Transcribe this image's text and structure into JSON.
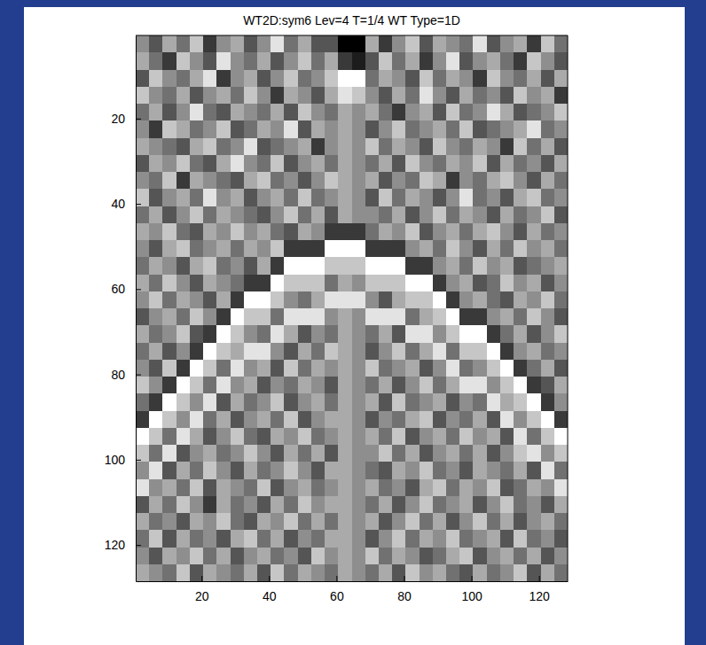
{
  "chart_data": {
    "type": "heatmap",
    "title": "WT2D:sym6 Lev=4 T=1/4 WT Type=1D",
    "xlim": [
      0.5,
      128.5
    ],
    "ylim": [
      0.5,
      128.5
    ],
    "xticks": [
      20,
      40,
      60,
      80,
      100,
      120
    ],
    "yticks": [
      20,
      40,
      60,
      80,
      100,
      120
    ],
    "zlim": [
      0,
      9
    ],
    "z": [
      [
        5,
        3,
        6,
        4,
        7,
        2,
        5,
        6,
        3,
        5,
        8,
        4,
        6,
        3,
        3,
        0,
        0,
        6,
        2,
        5,
        7,
        3,
        6,
        5,
        4,
        8,
        3,
        5,
        6,
        2,
        7,
        4
      ],
      [
        6,
        4,
        2,
        7,
        5,
        3,
        8,
        5,
        4,
        6,
        3,
        5,
        7,
        4,
        6,
        2,
        1,
        3,
        7,
        4,
        6,
        2,
        5,
        8,
        3,
        5,
        6,
        4,
        2,
        7,
        5,
        3
      ],
      [
        3,
        7,
        5,
        4,
        6,
        8,
        2,
        5,
        6,
        3,
        5,
        7,
        4,
        5,
        7,
        9,
        9,
        4,
        6,
        5,
        3,
        7,
        4,
        6,
        5,
        2,
        7,
        5,
        4,
        6,
        3,
        6
      ],
      [
        7,
        5,
        4,
        6,
        3,
        5,
        6,
        4,
        7,
        5,
        2,
        6,
        5,
        3,
        6,
        8,
        7,
        5,
        3,
        6,
        4,
        8,
        5,
        3,
        6,
        4,
        5,
        3,
        7,
        5,
        6,
        2
      ],
      [
        4,
        6,
        3,
        5,
        8,
        4,
        3,
        6,
        5,
        4,
        6,
        3,
        7,
        5,
        4,
        6,
        5,
        6,
        4,
        2,
        5,
        6,
        3,
        7,
        4,
        5,
        8,
        6,
        3,
        4,
        5,
        7
      ],
      [
        5,
        2,
        7,
        6,
        4,
        5,
        7,
        3,
        4,
        6,
        5,
        8,
        3,
        6,
        5,
        6,
        5,
        3,
        5,
        7,
        4,
        5,
        6,
        4,
        7,
        3,
        4,
        5,
        6,
        8,
        4,
        5
      ],
      [
        6,
        5,
        4,
        3,
        6,
        7,
        4,
        5,
        8,
        3,
        4,
        5,
        6,
        2,
        5,
        6,
        5,
        7,
        4,
        6,
        5,
        3,
        7,
        5,
        4,
        6,
        5,
        2,
        7,
        4,
        6,
        3
      ],
      [
        3,
        6,
        5,
        7,
        4,
        3,
        6,
        8,
        5,
        4,
        7,
        3,
        5,
        6,
        4,
        6,
        5,
        4,
        6,
        3,
        7,
        5,
        4,
        6,
        5,
        7,
        3,
        6,
        4,
        5,
        3,
        6
      ],
      [
        5,
        4,
        7,
        2,
        6,
        5,
        4,
        3,
        6,
        7,
        4,
        5,
        3,
        5,
        7,
        6,
        5,
        6,
        3,
        5,
        4,
        7,
        6,
        2,
        5,
        4,
        6,
        7,
        5,
        3,
        6,
        4
      ],
      [
        7,
        3,
        5,
        6,
        4,
        8,
        5,
        6,
        3,
        5,
        6,
        4,
        7,
        4,
        5,
        6,
        5,
        3,
        7,
        4,
        6,
        5,
        3,
        5,
        8,
        4,
        5,
        3,
        6,
        7,
        4,
        5
      ],
      [
        4,
        6,
        3,
        5,
        7,
        4,
        6,
        5,
        4,
        3,
        5,
        7,
        4,
        6,
        3,
        6,
        5,
        5,
        4,
        6,
        3,
        5,
        7,
        4,
        6,
        5,
        3,
        6,
        4,
        5,
        7,
        3
      ],
      [
        6,
        5,
        7,
        4,
        3,
        6,
        5,
        7,
        5,
        6,
        4,
        3,
        6,
        5,
        2,
        2,
        2,
        4,
        6,
        5,
        7,
        3,
        5,
        6,
        4,
        6,
        7,
        5,
        3,
        6,
        4,
        5
      ],
      [
        5,
        3,
        6,
        7,
        4,
        5,
        6,
        4,
        6,
        5,
        7,
        2,
        2,
        2,
        9,
        9,
        9,
        2,
        2,
        2,
        5,
        6,
        4,
        7,
        5,
        3,
        6,
        4,
        7,
        5,
        6,
        4
      ],
      [
        4,
        6,
        5,
        3,
        6,
        7,
        4,
        5,
        3,
        6,
        2,
        9,
        9,
        9,
        7,
        7,
        7,
        9,
        9,
        9,
        2,
        2,
        5,
        6,
        4,
        7,
        5,
        6,
        3,
        4,
        5,
        6
      ],
      [
        6,
        4,
        7,
        5,
        3,
        6,
        5,
        4,
        2,
        2,
        9,
        7,
        7,
        7,
        4,
        6,
        5,
        7,
        7,
        7,
        9,
        9,
        2,
        5,
        6,
        3,
        4,
        7,
        5,
        6,
        3,
        5
      ],
      [
        5,
        7,
        4,
        6,
        5,
        3,
        6,
        2,
        9,
        9,
        7,
        5,
        4,
        6,
        8,
        8,
        8,
        5,
        3,
        6,
        7,
        7,
        9,
        2,
        5,
        6,
        4,
        3,
        6,
        5,
        7,
        4
      ],
      [
        3,
        5,
        6,
        4,
        7,
        5,
        2,
        9,
        7,
        7,
        4,
        8,
        8,
        8,
        5,
        6,
        5,
        8,
        8,
        8,
        4,
        6,
        7,
        9,
        2,
        2,
        5,
        6,
        4,
        7,
        5,
        3
      ],
      [
        6,
        4,
        5,
        7,
        3,
        2,
        9,
        7,
        5,
        4,
        8,
        6,
        3,
        5,
        4,
        6,
        5,
        4,
        6,
        3,
        8,
        8,
        5,
        7,
        9,
        9,
        2,
        4,
        6,
        3,
        5,
        7
      ],
      [
        4,
        6,
        3,
        5,
        2,
        9,
        7,
        6,
        8,
        8,
        5,
        3,
        6,
        4,
        7,
        6,
        5,
        3,
        5,
        7,
        4,
        6,
        8,
        4,
        7,
        7,
        9,
        2,
        5,
        6,
        4,
        5
      ],
      [
        5,
        3,
        7,
        2,
        9,
        7,
        4,
        8,
        5,
        6,
        3,
        7,
        4,
        6,
        5,
        6,
        5,
        7,
        4,
        5,
        6,
        3,
        5,
        8,
        4,
        5,
        7,
        9,
        2,
        4,
        6,
        3
      ],
      [
        7,
        5,
        2,
        9,
        7,
        4,
        8,
        5,
        6,
        3,
        5,
        4,
        6,
        5,
        3,
        6,
        5,
        4,
        6,
        3,
        5,
        7,
        4,
        6,
        8,
        8,
        5,
        7,
        9,
        2,
        3,
        6
      ],
      [
        4,
        2,
        9,
        7,
        5,
        8,
        3,
        6,
        4,
        5,
        7,
        3,
        5,
        6,
        4,
        6,
        5,
        6,
        3,
        7,
        4,
        5,
        6,
        3,
        5,
        4,
        8,
        6,
        7,
        9,
        2,
        5
      ],
      [
        2,
        9,
        7,
        5,
        8,
        4,
        6,
        3,
        5,
        6,
        4,
        7,
        3,
        5,
        6,
        6,
        5,
        3,
        5,
        4,
        6,
        7,
        3,
        5,
        4,
        6,
        3,
        8,
        5,
        7,
        9,
        2
      ],
      [
        9,
        7,
        4,
        8,
        6,
        3,
        5,
        7,
        4,
        3,
        6,
        5,
        7,
        4,
        5,
        6,
        5,
        6,
        4,
        7,
        3,
        5,
        6,
        4,
        7,
        5,
        6,
        3,
        8,
        4,
        7,
        9
      ],
      [
        7,
        4,
        8,
        3,
        5,
        6,
        4,
        5,
        7,
        5,
        3,
        6,
        4,
        6,
        3,
        6,
        5,
        5,
        7,
        4,
        6,
        3,
        5,
        6,
        4,
        6,
        3,
        5,
        7,
        8,
        5,
        7
      ],
      [
        5,
        8,
        3,
        6,
        4,
        7,
        5,
        3,
        6,
        4,
        5,
        7,
        5,
        3,
        6,
        6,
        5,
        4,
        3,
        6,
        5,
        7,
        4,
        5,
        3,
        6,
        5,
        4,
        6,
        3,
        8,
        4
      ],
      [
        8,
        5,
        6,
        4,
        7,
        3,
        6,
        5,
        4,
        7,
        3,
        5,
        6,
        4,
        5,
        6,
        5,
        6,
        4,
        5,
        3,
        6,
        7,
        4,
        6,
        5,
        7,
        3,
        4,
        6,
        5,
        8
      ],
      [
        3,
        6,
        4,
        7,
        5,
        2,
        6,
        4,
        5,
        3,
        6,
        4,
        7,
        5,
        6,
        6,
        5,
        4,
        6,
        3,
        5,
        7,
        4,
        5,
        6,
        3,
        5,
        7,
        4,
        5,
        3,
        6
      ],
      [
        6,
        4,
        5,
        3,
        6,
        5,
        7,
        4,
        3,
        6,
        5,
        7,
        4,
        6,
        4,
        6,
        5,
        6,
        3,
        5,
        7,
        4,
        6,
        3,
        5,
        7,
        4,
        6,
        3,
        5,
        6,
        4
      ],
      [
        4,
        7,
        3,
        6,
        4,
        5,
        3,
        6,
        7,
        4,
        6,
        3,
        5,
        4,
        6,
        6,
        5,
        3,
        5,
        7,
        4,
        6,
        5,
        7,
        4,
        5,
        6,
        3,
        7,
        4,
        5,
        3
      ],
      [
        5,
        3,
        6,
        5,
        7,
        4,
        6,
        3,
        5,
        6,
        4,
        5,
        3,
        7,
        5,
        6,
        5,
        7,
        4,
        6,
        5,
        3,
        4,
        6,
        7,
        3,
        5,
        6,
        4,
        6,
        3,
        5
      ],
      [
        6,
        5,
        4,
        7,
        3,
        6,
        5,
        4,
        6,
        3,
        7,
        4,
        6,
        5,
        4,
        6,
        5,
        4,
        6,
        3,
        7,
        5,
        6,
        4,
        3,
        6,
        4,
        5,
        7,
        3,
        6,
        4
      ]
    ]
  }
}
